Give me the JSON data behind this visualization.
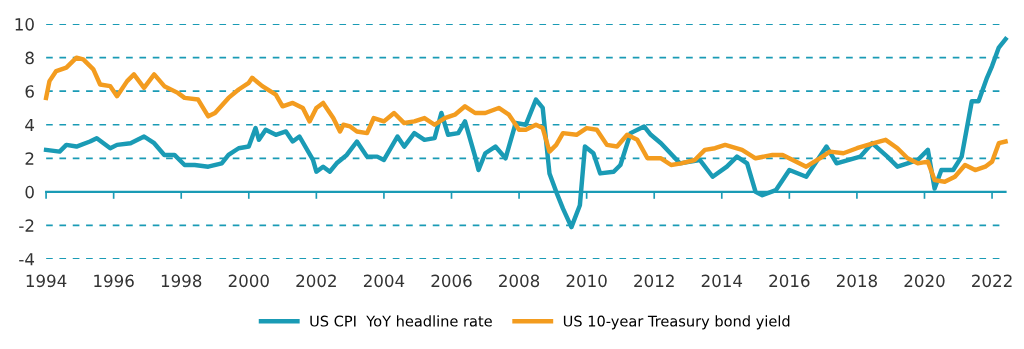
{
  "chart_data": {
    "type": "line",
    "xlim": [
      1994,
      2022.4
    ],
    "xticks": [
      1994,
      1996,
      1998,
      2000,
      2002,
      2004,
      2006,
      2008,
      2010,
      2012,
      2014,
      2016,
      2018,
      2020,
      2022
    ],
    "ylim": [
      -4,
      10
    ],
    "yticks": [
      -4,
      -2,
      0,
      2,
      4,
      6,
      8,
      10
    ],
    "grid": "y",
    "legend": "bottom",
    "marker": "none",
    "line_style": "solid",
    "ref_lines": [
      {
        "axis": "y",
        "value": 0,
        "color": "#1a9bb5",
        "line_style": "solid"
      }
    ],
    "series": [
      {
        "name": "US CPI  YoY headline rate",
        "color": "#1a9bb5",
        "x": [
          1994.0,
          1994.4,
          1994.6,
          1994.9,
          1995.3,
          1995.5,
          1995.9,
          1996.1,
          1996.5,
          1996.9,
          1997.2,
          1997.5,
          1997.8,
          1998.1,
          1998.4,
          1998.8,
          1999.2,
          1999.4,
          1999.7,
          2000.0,
          2000.2,
          2000.3,
          2000.5,
          2000.8,
          2001.1,
          2001.3,
          2001.5,
          2001.9,
          2002.0,
          2002.2,
          2002.4,
          2002.6,
          2002.9,
          2003.2,
          2003.5,
          2003.8,
          2004.0,
          2004.4,
          2004.6,
          2004.9,
          2005.2,
          2005.5,
          2005.7,
          2005.9,
          2006.2,
          2006.4,
          2006.7,
          2006.8,
          2007.0,
          2007.3,
          2007.6,
          2007.9,
          2008.2,
          2008.5,
          2008.7,
          2008.9,
          2009.1,
          2009.3,
          2009.55,
          2009.8,
          2009.95,
          2010.2,
          2010.4,
          2010.8,
          2011.0,
          2011.3,
          2011.7,
          2011.9,
          2012.2,
          2012.76,
          2013.35,
          2013.73,
          2014.15,
          2014.45,
          2014.75,
          2015.0,
          2015.2,
          2015.6,
          2016.0,
          2016.5,
          2017.1,
          2017.4,
          2018.1,
          2018.45,
          2018.9,
          2019.2,
          2019.5,
          2019.8,
          2020.1,
          2020.3,
          2020.5,
          2020.85,
          2021.1,
          2021.4,
          2021.6,
          2021.85,
          2022.0,
          2022.2,
          2022.4
        ],
        "values": [
          2.5,
          2.4,
          2.8,
          2.7,
          3.0,
          3.2,
          2.6,
          2.8,
          2.9,
          3.3,
          2.9,
          2.2,
          2.2,
          1.6,
          1.6,
          1.5,
          1.7,
          2.2,
          2.6,
          2.7,
          3.8,
          3.1,
          3.7,
          3.4,
          3.6,
          3.0,
          3.3,
          1.9,
          1.2,
          1.5,
          1.2,
          1.7,
          2.2,
          3.0,
          2.1,
          2.1,
          1.9,
          3.3,
          2.7,
          3.5,
          3.1,
          3.2,
          4.7,
          3.4,
          3.5,
          4.2,
          2.1,
          1.3,
          2.3,
          2.7,
          2.0,
          4.1,
          4.0,
          5.5,
          5.0,
          1.1,
          0.0,
          -1.0,
          -2.1,
          -0.8,
          2.7,
          2.3,
          1.1,
          1.2,
          1.6,
          3.5,
          3.9,
          3.4,
          2.9,
          1.7,
          1.9,
          0.9,
          1.5,
          2.1,
          1.7,
          0.0,
          -0.2,
          0.1,
          1.3,
          0.9,
          2.7,
          1.7,
          2.1,
          2.9,
          2.1,
          1.5,
          1.7,
          1.9,
          2.5,
          0.2,
          1.3,
          1.3,
          2.1,
          5.4,
          5.4,
          6.8,
          7.5,
          8.6,
          9.1
        ]
      },
      {
        "name": "US 10-year Treasury bond yield",
        "color": "#f39c1f",
        "x": [
          1994.0,
          1994.1,
          1994.3,
          1994.6,
          1994.9,
          1995.1,
          1995.4,
          1995.6,
          1995.9,
          1996.1,
          1996.4,
          1996.6,
          1996.9,
          1997.2,
          1997.5,
          1997.9,
          1998.1,
          1998.5,
          1998.8,
          1999.0,
          1999.4,
          1999.7,
          2000.0,
          2000.1,
          2000.4,
          2000.8,
          2001.0,
          2001.3,
          2001.6,
          2001.8,
          2002.0,
          2002.2,
          2002.5,
          2002.7,
          2002.8,
          2003.0,
          2003.2,
          2003.5,
          2003.7,
          2004.0,
          2004.3,
          2004.6,
          2004.9,
          2005.2,
          2005.5,
          2005.8,
          2006.1,
          2006.4,
          2006.7,
          2007.0,
          2007.4,
          2007.7,
          2008.0,
          2008.2,
          2008.5,
          2008.7,
          2008.9,
          2009.1,
          2009.3,
          2009.7,
          2010.0,
          2010.3,
          2010.6,
          2010.9,
          2011.2,
          2011.5,
          2011.8,
          2012.2,
          2012.5,
          2012.8,
          2013.2,
          2013.5,
          2013.8,
          2014.1,
          2014.6,
          2015.0,
          2015.5,
          2015.8,
          2016.1,
          2016.5,
          2016.9,
          2017.2,
          2017.6,
          2018.0,
          2018.5,
          2018.85,
          2019.2,
          2019.5,
          2019.8,
          2020.1,
          2020.3,
          2020.6,
          2020.9,
          2021.2,
          2021.5,
          2021.8,
          2022.0,
          2022.2,
          2022.4
        ],
        "values": [
          5.6,
          6.6,
          7.2,
          7.4,
          8.0,
          7.9,
          7.3,
          6.4,
          6.3,
          5.7,
          6.6,
          7.0,
          6.2,
          7.0,
          6.3,
          5.9,
          5.6,
          5.5,
          4.5,
          4.7,
          5.6,
          6.1,
          6.5,
          6.8,
          6.3,
          5.8,
          5.1,
          5.3,
          5.0,
          4.2,
          5.0,
          5.3,
          4.4,
          3.6,
          4.0,
          3.9,
          3.6,
          3.5,
          4.4,
          4.2,
          4.7,
          4.1,
          4.2,
          4.4,
          4.0,
          4.4,
          4.6,
          5.1,
          4.7,
          4.7,
          5.0,
          4.6,
          3.7,
          3.7,
          4.0,
          3.8,
          2.4,
          2.8,
          3.5,
          3.4,
          3.8,
          3.7,
          2.8,
          2.7,
          3.4,
          3.1,
          2.0,
          2.0,
          1.6,
          1.7,
          1.9,
          2.5,
          2.6,
          2.8,
          2.5,
          2.0,
          2.2,
          2.2,
          1.9,
          1.5,
          2.0,
          2.4,
          2.3,
          2.6,
          2.9,
          3.1,
          2.6,
          2.0,
          1.7,
          1.8,
          0.7,
          0.6,
          0.9,
          1.6,
          1.3,
          1.5,
          1.8,
          2.9,
          3.0
        ]
      }
    ]
  }
}
